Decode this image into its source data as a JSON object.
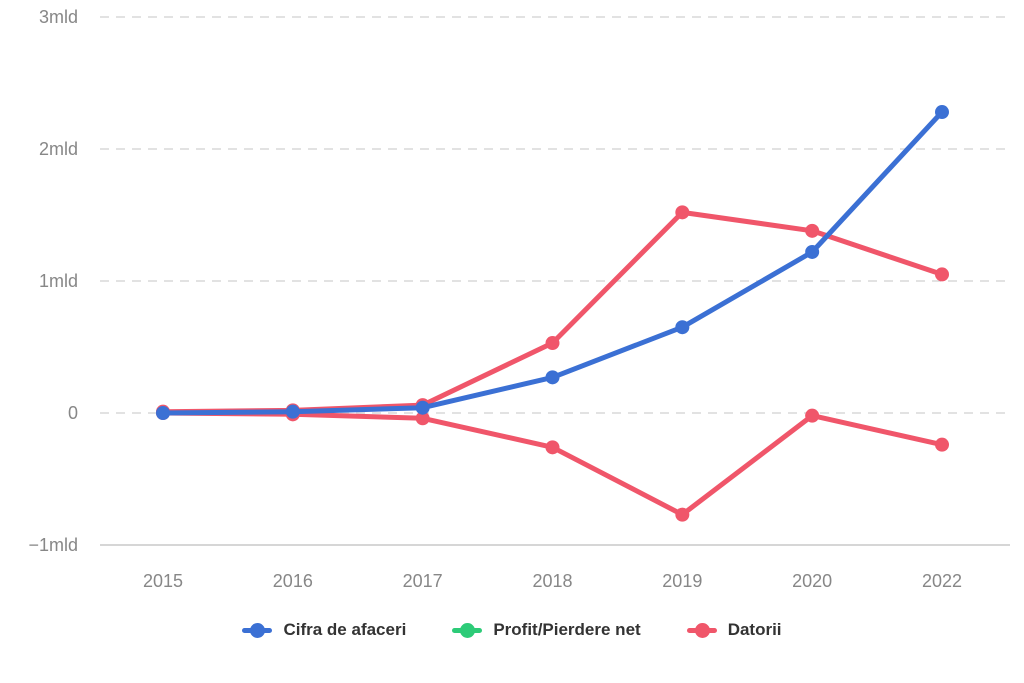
{
  "chart_data": {
    "type": "line",
    "title": "",
    "xlabel": "",
    "ylabel": "",
    "unit": "mld (RON)",
    "categories": [
      "2015",
      "2016",
      "2017",
      "2018",
      "2019",
      "2020",
      "2022"
    ],
    "series": [
      {
        "name": "Cifra de afaceri",
        "legend_color": "#3b70d4",
        "line_color": "#3b70d4",
        "values": [
          0.0,
          0.01,
          0.04,
          0.27,
          0.65,
          1.22,
          2.28
        ]
      },
      {
        "name": "Profit/Pierdere net",
        "legend_color": "#2dcb78",
        "line_color": "#f0566a",
        "values": [
          0.0,
          -0.01,
          -0.04,
          -0.26,
          -0.77,
          -0.02,
          -0.24
        ]
      },
      {
        "name": "Datorii",
        "legend_color": "#f0566a",
        "line_color": "#f0566a",
        "values": [
          0.01,
          0.02,
          0.06,
          0.53,
          1.52,
          1.38,
          1.05
        ]
      }
    ],
    "y_ticks": [
      {
        "label": "3mld",
        "value": 3
      },
      {
        "label": "2mld",
        "value": 2
      },
      {
        "label": "1mld",
        "value": 1
      },
      {
        "label": "0",
        "value": 0
      },
      {
        "label": "−1mld",
        "value": -1
      }
    ],
    "ylim": [
      -1,
      3
    ],
    "grid": "horizontal-dashed",
    "baseline_tick": -1,
    "grid_color": "#e2e2e2",
    "baseline_color": "#d6d6d6",
    "tick_label_color": "#878787",
    "legend_position": "bottom",
    "legend_text_color": "#333333",
    "background_color": "#ffffff"
  }
}
